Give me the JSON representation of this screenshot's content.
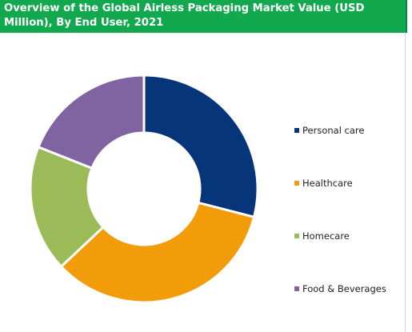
{
  "header": {
    "title": "Overview of the Global Airless Packaging Market Value (USD Million), By End User, 2021"
  },
  "colors": {
    "title_bg": "#11a84e",
    "title_text": "#ffffff"
  },
  "chart_data": {
    "type": "pie",
    "variant": "donut",
    "title": "Overview of the Global Airless Packaging Market Value (USD Million), By End User, 2021",
    "categories": [
      "Personal care",
      "Healthcare",
      "Homecare",
      "Food & Beverages"
    ],
    "values": [
      29,
      34,
      18,
      19
    ],
    "colors": [
      "#06357a",
      "#f29c09",
      "#9bbb59",
      "#8064a2"
    ],
    "legend_position": "right",
    "data_labels": false
  }
}
